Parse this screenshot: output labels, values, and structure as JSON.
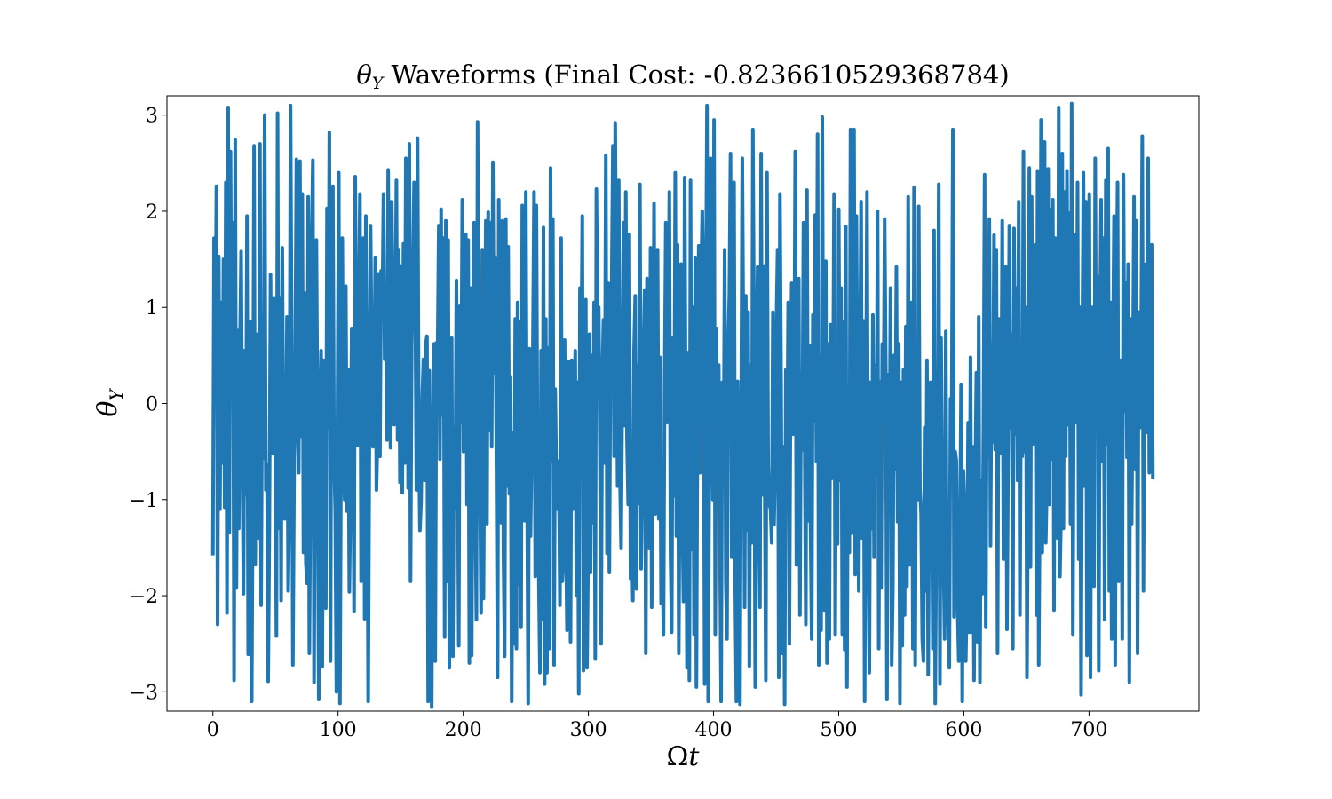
{
  "chart_data": {
    "type": "line",
    "title": "θY Waveforms (Final Cost: -0.8236610529368784)",
    "title_parts": {
      "symbol": "θ",
      "subscript": "Y",
      "rest": " Waveforms (Final Cost: -0.8236610529368784)"
    },
    "xlabel": "Ωt",
    "xlabel_parts": {
      "symbol": "Ω",
      "var": "t"
    },
    "ylabel": "θY",
    "ylabel_parts": {
      "symbol": "θ",
      "subscript": "Y"
    },
    "xlim": [
      -36.7,
      787.7
    ],
    "ylim": [
      -3.2,
      3.2
    ],
    "xticks": [
      0,
      100,
      200,
      300,
      400,
      500,
      600,
      700
    ],
    "xtick_labels": [
      "0",
      "100",
      "200",
      "300",
      "400",
      "500",
      "600",
      "700"
    ],
    "yticks": [
      -3,
      -2,
      -1,
      0,
      1,
      2,
      3
    ],
    "ytick_labels": [
      "−3",
      "−2",
      "−1",
      "0",
      "1",
      "2",
      "3"
    ],
    "grid": false,
    "legend": "none",
    "series": [
      {
        "color": "#1f77b4",
        "x_start": 0,
        "x_end": 751,
        "x_step": 1,
        "values": [
          -1.58,
          1.72,
          0.23,
          2.26,
          -2.3,
          1.53,
          -1.1,
          1.05,
          -0.62,
          1.5,
          -1.08,
          2.3,
          -2.18,
          3.08,
          -1.34,
          2.62,
          0.08,
          1.88,
          -2.88,
          2.74,
          -1.92,
          0.76,
          -1.3,
          0.55,
          1.58,
          -0.42,
          -1.98,
          0.55,
          -0.95,
          1.95,
          -2.61,
          -2.32,
          0.85,
          -3.1,
          -0.74,
          2.68,
          -1.67,
          0.72,
          -0.12,
          -1.4,
          2.7,
          -2.1,
          0.6,
          -0.57,
          3.0,
          -0.9,
          -0.64,
          -2.89,
          -1.32,
          1.34,
          -0.4,
          -0.52,
          1.1,
          -0.28,
          -2.42,
          3.02,
          -1.3,
          1.1,
          -2.05,
          1.62,
          -0.58,
          -1.2,
          -0.72,
          0.9,
          -1.95,
          -1.05,
          3.1,
          0.56,
          -2.72,
          -0.78,
          0.42,
          2.54,
          -0.25,
          -0.72,
          2.52,
          -0.34,
          2.18,
          -1.55,
          1.15,
          -1.65,
          -1.87,
          2.15,
          -2.6,
          -0.78,
          1.76,
          2.53,
          -2.9,
          0.58,
          1.7,
          -0.36,
          -3.08,
          -0.12,
          0.55,
          -2.74,
          0.45,
          -0.5,
          -2.13,
          2.03,
          -0.25,
          2.82,
          -2.68,
          1.9,
          2.26,
          -0.55,
          -1.12,
          -3.0,
          0.1,
          2.4,
          -3.12,
          -0.3,
          1.72,
          -0.6,
          -1.0,
          1.22,
          -1.12,
          0.35,
          -1.96,
          -0.95,
          0.78,
          0.22,
          -2.16,
          2.36,
          0.35,
          -0.44,
          0.9,
          2.18,
          -1.85,
          0.44,
          1.72,
          -2.24,
          1.95,
          0.12,
          -3.1,
          -0.42,
          1.85,
          0.58,
          -0.45,
          -0.22,
          1.52,
          -0.9,
          -0.36,
          1.35,
          -0.55,
          1.38,
          0.9,
          2.18,
          0.46,
          0.88,
          -0.38,
          2.43,
          0.3,
          -0.46,
          2.1,
          0.88,
          -0.22,
          0.7,
          2.32,
          -0.38,
          1.6,
          -0.82,
          1.43,
          -0.93,
          1.66,
          -0.62,
          2.55,
          1.66,
          -0.88,
          2.7,
          -1.85,
          0.64,
          1.32,
          2.3,
          1.17,
          -0.9,
          2.76,
          -0.26,
          -1.32,
          -1.02,
          0.08,
          0.46,
          -0.8,
          0.62,
          0.7,
          -3.1,
          0.34,
          -0.85,
          -3.16,
          -0.36,
          0.62,
          -2.68,
          0.63,
          0.47,
          1.85,
          -0.58,
          2.02,
          -0.12,
          1.72,
          -2.43,
          1.9,
          -1.85,
          1.7,
          -2.75,
          -0.9,
          0.68,
          -2.63,
          -0.25,
          -1.1,
          1.28,
          -0.42,
          -2.52,
          1.02,
          -0.2,
          2.12,
          -0.5,
          1.05,
          1.76,
          -1.05,
          1.7,
          -2.7,
          1.2,
          -2.62,
          0.25,
          1.88,
          -1.03,
          -2.25,
          2.93,
          0.2,
          -0.82,
          -2.18,
          1.6,
          -2.03,
          0.08,
          1.9,
          -1.25,
          1.99,
          -0.28,
          1.88,
          -0.45,
          2.51,
          0.32,
          1.52,
          -0.58,
          -2.85,
          2.12,
          -0.56,
          -1.24,
          1.9,
          -1.55,
          -2.63,
          1.92,
          -0.86,
          1.63,
          -0.94,
          0.28,
          -3.1,
          -0.3,
          -2.5,
          0.88,
          -2.55,
          1.05,
          -1.88,
          0.85,
          -2.32,
          2.06,
          -0.45,
          -1.22,
          2.2,
          -0.7,
          -3.12,
          0.57,
          -1.38,
          -0.45,
          0.58,
          2.2,
          -1.8,
          2.06,
          -0.7,
          -1.75,
          -2.8,
          0.55,
          -2.25,
          1.83,
          -2.92,
          0.88,
          -2.8,
          0.58,
          -2.55,
          2.45,
          -0.6,
          1.92,
          -2.72,
          0.15,
          -0.8,
          -1.1,
          -0.6,
          -2.1,
          1.72,
          -1.85,
          -1.58,
          0.66,
          -1.3,
          -2.36,
          0.44,
          -0.3,
          -2.48,
          0.45,
          -1.1,
          -0.52,
          0.55,
          -2.0,
          0.22,
          -3.02,
          1.2,
          0.12,
          1.95,
          -2.78,
          -0.55,
          1.08,
          -2.75,
          -1.5,
          0.72,
          -1.75,
          0.5,
          -1.24,
          1.05,
          -2.65,
          2.23,
          0.78,
          1.0,
          -0.58,
          -2.5,
          0.25,
          0.87,
          -0.62,
          2.58,
          -1.56,
          1.25,
          -1.75,
          0.62,
          1.26,
          2.68,
          -0.55,
          2.92,
          1.0,
          -0.86,
          2.32,
          -0.75,
          -1.5,
          0.13,
          1.88,
          -0.23,
          2.2,
          -0.38,
          -1.05,
          1.76,
          -1.82,
          -1.26,
          -2.05,
          0.56,
          1.12,
          -1.93,
          0.4,
          -1.04,
          2.28,
          -1.72,
          -0.78,
          0.46,
          1.18,
          -2.6,
          1.3,
          -1.05,
          -1.5,
          1.62,
          -2.12,
          -0.25,
          2.08,
          -1.15,
          0.25,
          1.6,
          -1.2,
          0.48,
          -2.08,
          -1.4,
          -2.4,
          0.23,
          1.88,
          -0.2,
          0.06,
          2.2,
          -1.58,
          -2.38,
          0.68,
          -0.96,
          2.4,
          -1.38,
          1.65,
          -2.6,
          -0.38,
          1.45,
          -1.1,
          -2.06,
          2.35,
          -0.22,
          -2.75,
          0.53,
          -2.88,
          2.32,
          -1.52,
          1.0,
          -2.4,
          1.52,
          -2.95,
          0.13,
          1.64,
          -0.72,
          1.25,
          2.0,
          1.12,
          -2.92,
          0.88,
          3.1,
          -3.1,
          -0.4,
          2.55,
          0.4,
          -1.0,
          2.95,
          -2.4,
          0.78,
          -0.55,
          0.4,
          -1.45,
          -3.1,
          0.22,
          -0.85,
          1.6,
          -1.86,
          -2.45,
          0.6,
          1.12,
          2.6,
          -1.6,
          -0.82,
          2.3,
          -1.9,
          -3.1,
          0.23,
          -0.82,
          -3.13,
          -0.3,
          2.55,
          0.58,
          -2.12,
          1.12,
          -1.32,
          0.95,
          -2.73,
          0.4,
          -1.45,
          2.85,
          0.68,
          -2.95,
          0.05,
          1.42,
          -1.18,
          -2.12,
          2.6,
          -0.95,
          1.43,
          -0.7,
          -2.88,
          2.4,
          -0.65,
          -1.05,
          -1.1,
          -1.45,
          0.95,
          -1.26,
          -0.62,
          0.8,
          1.6,
          -2.85,
          2.18,
          0.2,
          -2.6,
          -0.45,
          -3.13,
          0.35,
          -0.84,
          1.05,
          -2.5,
          0.1,
          1.25,
          -0.32,
          -0.15,
          2.62,
          -1.68,
          0.96,
          1.3,
          -2.2,
          0.3,
          -0.48,
          1.88,
          -0.35,
          -2.3,
          2.22,
          -1.22,
          0.6,
          -1.25,
          -2.45,
          0.92,
          -0.18,
          1.96,
          -0.6,
          2.8,
          -2.72,
          0.5,
          -2.36,
          2.98,
          -0.4,
          -2.15,
          1.48,
          -2.7,
          0.62,
          -2.45,
          0.82,
          -0.78,
          -0.28,
          2.18,
          -2.4,
          0.55,
          -1.46,
          2.02,
          -0.8,
          1.2,
          -2.4,
          0.85,
          -2.56,
          1.84,
          -2.95,
          0.15,
          -1.55,
          2.85,
          -1.35,
          -0.75,
          2.85,
          -1.78,
          1.95,
          -0.12,
          -1.95,
          0.25,
          2.1,
          -1.4,
          0.86,
          -3.1,
          -0.48,
          2.2,
          -1.2,
          -2.8,
          0.22,
          -1.3,
          0.92,
          -1.6,
          0.4,
          -0.72,
          2.0,
          -2.55,
          0.23,
          -1.92,
          0.62,
          -0.2,
          1.92,
          0.35,
          -3.08,
          0.3,
          -0.98,
          1.2,
          -2.72,
          -1.95,
          0.5,
          -0.68,
          1.42,
          -1.23,
          0.62,
          -3.12,
          0.22,
          -2.52,
          0.35,
          -2.2,
          0.8,
          -1.9,
          2.15,
          -1.68,
          -0.35,
          1.05,
          -2.55,
          2.25,
          -2.72,
          0.62,
          -1.0,
          2.05,
          -0.88,
          -1.15,
          -2.45,
          -2.68,
          -0.25,
          -1.95,
          0.45,
          -2.82,
          -0.85,
          0.22,
          -0.6,
          -2.55,
          1.8,
          -3.12,
          -1.35,
          -0.62,
          2.28,
          -2.92,
          0.68,
          -1.05,
          -1.6,
          -2.45,
          0.75,
          -2.3,
          -1.2,
          -2.75,
          0.05,
          -0.15,
          2.85,
          -2.22,
          -0.5,
          -0.6,
          -2.1,
          -2.68,
          -1.5,
          0.2,
          -3.1,
          -0.7,
          -1.15,
          -2.68,
          -1.95,
          -0.2,
          -2.38,
          0.48,
          -2.38,
          -0.45,
          -2.88,
          -0.85,
          0.32,
          -2.48,
          0.9,
          -2.9,
          -0.8,
          -1.98,
          -0.25,
          2.38,
          -2.32,
          0.45,
          -0.55,
          1.92,
          -1.48,
          0.62,
          -0.4,
          1.75,
          -0.48,
          1.6,
          -2.6,
          0.88,
          0.12,
          -0.52,
          1.9,
          -1.62,
          -0.3,
          1.42,
          -2.35,
          -0.48,
          1.85,
          -0.25,
          0.72,
          -2.55,
          1.82,
          -0.32,
          1.2,
          -0.8,
          2.1,
          -2.2,
          0.28,
          -0.55,
          2.62,
          -0.5,
          1.0,
          -2.85,
          -0.8,
          2.45,
          -1.7,
          2.15,
          -0.42,
          0.68,
          1.65,
          -2.2,
          2.42,
          -2.72,
          -0.92,
          2.95,
          -1.55,
          0.25,
          2.72,
          -1.45,
          -0.8,
          2.44,
          -1.05,
          2.02,
          -0.58,
          2.12,
          -2.15,
          1.72,
          0.48,
          -1.4,
          3.08,
          -1.8,
          -1.15,
          2.6,
          -1.3,
          2.2,
          -0.55,
          2.42,
          -0.22,
          1.98,
          -1.25,
          3.12,
          -2.4,
          0.6,
          1.75,
          -0.2,
          2.3,
          -1.62,
          1.0,
          -3.03,
          0.58,
          2.4,
          -0.86,
          2.1,
          -2.62,
          0.75,
          2.18,
          -2.85,
          1.0,
          0.45,
          -1.9,
          2.55,
          -0.3,
          1.32,
          -2.78,
          0.6,
          2.12,
          -0.6,
          1.72,
          -2.25,
          2.32,
          -0.42,
          2.65,
          -1.95,
          1.05,
          -2.45,
          0.4,
          1.95,
          -2.72,
          0.75,
          2.3,
          -1.85,
          -0.15,
          0.45,
          -2.45,
          2.38,
          -0.08,
          1.25,
          -0.56,
          1.45,
          -2.9,
          0.88,
          -1.25,
          0.3,
          2.15,
          -0.68,
          1.9,
          -2.6,
          0.95,
          -0.25,
          0.45,
          2.78,
          -1.95,
          0.95,
          1.45,
          -0.3,
          2.55,
          -0.72,
          1.05,
          1.65,
          -0.78
        ]
      }
    ]
  }
}
